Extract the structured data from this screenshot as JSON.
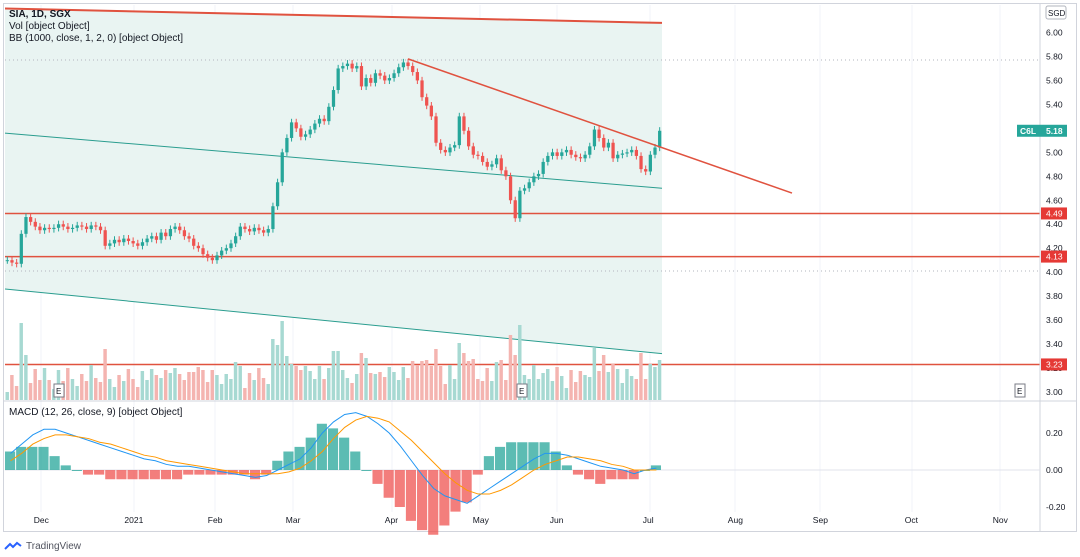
{
  "legend": {
    "symbol_line": "SIA, 1D, SGX",
    "vol_line": "Vol [object Object]",
    "bb_line": "BB (1000, close, 1, 2, 0) [object Object]",
    "macd_line": "MACD (12, 26, close, 9) [object Object]"
  },
  "currency_badge": "SGD",
  "footer": {
    "brand": "TradingView"
  },
  "chart_data": [
    {
      "type": "candlestick",
      "ticker": "C6L",
      "last_price": 5.18,
      "price_axis": {
        "range": [
          3.0,
          6.2
        ],
        "ticks": [
          "6.00",
          "5.80",
          "5.60",
          "5.40",
          "5.20",
          "5.00",
          "4.80",
          "4.60",
          "4.40",
          "4.20",
          "4.00",
          "3.80",
          "3.60",
          "3.40",
          "3.20",
          "3.00"
        ]
      },
      "time_axis": [
        "Dec",
        "2021",
        "Feb",
        "Mar",
        "Apr",
        "May",
        "Jun",
        "Jul",
        "Aug",
        "Sep",
        "Oct",
        "Nov"
      ],
      "closes": [
        4.1,
        4.08,
        4.07,
        4.32,
        4.46,
        4.42,
        4.38,
        4.35,
        4.37,
        4.36,
        4.37,
        4.4,
        4.38,
        4.36,
        4.37,
        4.39,
        4.38,
        4.36,
        4.39,
        4.38,
        4.35,
        4.22,
        4.24,
        4.27,
        4.25,
        4.28,
        4.26,
        4.24,
        4.22,
        4.25,
        4.28,
        4.3,
        4.27,
        4.33,
        4.3,
        4.36,
        4.38,
        4.35,
        4.3,
        4.28,
        4.22,
        4.2,
        4.15,
        4.12,
        4.1,
        4.14,
        4.18,
        4.2,
        4.24,
        4.3,
        4.38,
        4.36,
        4.34,
        4.37,
        4.35,
        4.33,
        4.36,
        4.55,
        4.75,
        5.0,
        5.12,
        5.25,
        5.2,
        5.13,
        5.15,
        5.19,
        5.24,
        5.28,
        5.26,
        5.38,
        5.52,
        5.7,
        5.72,
        5.74,
        5.7,
        5.72,
        5.55,
        5.62,
        5.58,
        5.66,
        5.64,
        5.6,
        5.62,
        5.66,
        5.71,
        5.75,
        5.72,
        5.67,
        5.6,
        5.46,
        5.39,
        5.3,
        5.08,
        5.02,
        5.0,
        5.04,
        5.06,
        5.3,
        5.18,
        5.05,
        4.98,
        4.97,
        4.92,
        4.88,
        4.9,
        4.95,
        4.85,
        4.8,
        4.6,
        4.45,
        4.68,
        4.7,
        4.75,
        4.8,
        4.82,
        4.92,
        4.97,
        5.0,
        4.97,
        5.0,
        5.02,
        4.98,
        4.96,
        4.95,
        4.98,
        5.05,
        5.19,
        5.12,
        5.04,
        5.08,
        4.95,
        4.98,
        4.99,
        5.0,
        5.02,
        4.97,
        4.86,
        4.84,
        4.98,
        5.04,
        5.18
      ],
      "upper_line": {
        "start": 6.2,
        "end": 6.08
      },
      "middle_line": {
        "start": 5.16,
        "end": 4.7
      },
      "lower_line": {
        "start": 3.86,
        "end": 3.32
      },
      "resistance_trendline": {
        "start": 5.78,
        "end": 4.66
      },
      "horizontal_levels": [
        4.49,
        4.13,
        3.23
      ],
      "level_labels": [
        "4.49",
        "4.13",
        "3.23"
      ],
      "earnings_markers": [
        "E",
        "E",
        "E"
      ]
    },
    {
      "type": "histogram",
      "name": "MACD (12, 26, close, 9)",
      "axis": {
        "range": [
          -0.24,
          0.28
        ],
        "ticks": [
          "0.20",
          "0.00",
          "-0.20"
        ]
      },
      "macd": [
        0.09,
        0.14,
        0.19,
        0.22,
        0.22,
        0.2,
        0.18,
        0.16,
        0.14,
        0.12,
        0.1,
        0.08,
        0.06,
        0.05,
        0.03,
        0.02,
        0.02,
        0.01,
        0.0,
        -0.01,
        -0.02,
        -0.03,
        -0.04,
        -0.03,
        0.0,
        0.03,
        0.06,
        0.12,
        0.2,
        0.26,
        0.3,
        0.31,
        0.29,
        0.25,
        0.2,
        0.13,
        0.05,
        -0.03,
        -0.1,
        -0.14,
        -0.16,
        -0.18,
        -0.14,
        -0.1,
        -0.06,
        -0.02,
        0.02,
        0.06,
        0.09,
        0.09,
        0.08,
        0.06,
        0.04,
        0.02,
        0.01,
        0.0,
        -0.02,
        0.0,
        0.01
      ],
      "signal": [
        0.05,
        0.09,
        0.14,
        0.17,
        0.19,
        0.19,
        0.18,
        0.17,
        0.15,
        0.14,
        0.12,
        0.1,
        0.08,
        0.07,
        0.05,
        0.04,
        0.03,
        0.02,
        0.01,
        0.0,
        -0.01,
        -0.02,
        -0.02,
        -0.02,
        -0.02,
        -0.01,
        0.01,
        0.05,
        0.1,
        0.17,
        0.23,
        0.27,
        0.29,
        0.28,
        0.26,
        0.21,
        0.16,
        0.1,
        0.04,
        -0.02,
        -0.07,
        -0.11,
        -0.13,
        -0.13,
        -0.11,
        -0.08,
        -0.04,
        0.0,
        0.03,
        0.05,
        0.07,
        0.07,
        0.06,
        0.05,
        0.03,
        0.02,
        0.0,
        0.0,
        0.0
      ]
    }
  ]
}
